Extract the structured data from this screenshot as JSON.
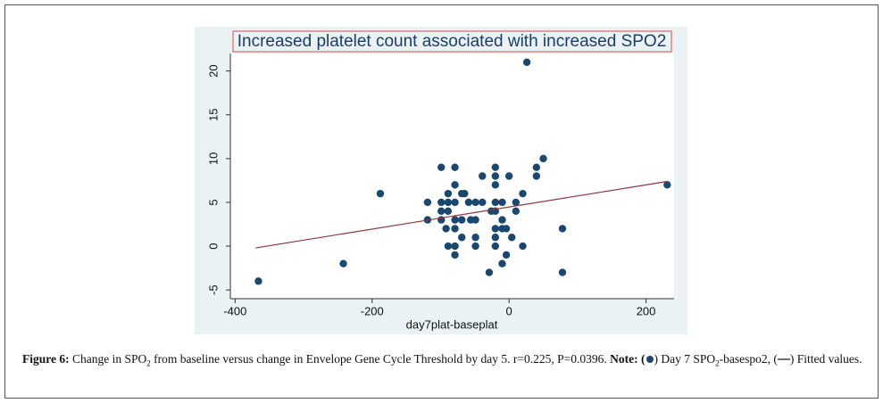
{
  "chart_data": {
    "type": "scatter",
    "title": "Increased platelet count associated with increased SPO2",
    "x_label": "day7plat-baseplat",
    "xlim": [
      -407,
      241
    ],
    "xticks": [
      -400,
      -200,
      0,
      200
    ],
    "ylim": [
      -6,
      22
    ],
    "yticks": [
      -5,
      0,
      5,
      10,
      15,
      20
    ],
    "series": [
      {
        "color": "#1a476f",
        "x": [
          -366,
          -242,
          -188,
          -119,
          -119,
          -99,
          -99,
          -99,
          -99,
          -92,
          -89,
          -89,
          -89,
          -89,
          -79,
          -79,
          -79,
          -79,
          -79,
          -79,
          -79,
          -69,
          -69,
          -65,
          -69,
          -59,
          -56,
          -49,
          -49,
          -49,
          -49,
          -39,
          -39,
          -29,
          -26,
          -20,
          -20,
          -20,
          -20,
          -20,
          -20,
          -20,
          -20,
          -10,
          -10,
          -10,
          -10,
          -4,
          -4,
          0,
          4,
          10,
          10,
          20,
          20,
          26,
          40,
          40,
          50,
          78,
          78,
          231
        ],
        "values": [
          -4,
          -2,
          6,
          5,
          3,
          9,
          5,
          4,
          3,
          2,
          6,
          5,
          4,
          0,
          9,
          7,
          5,
          3,
          2,
          0,
          -1,
          6,
          3,
          6,
          1,
          5,
          3,
          5,
          3,
          1,
          0,
          8,
          5,
          -3,
          4,
          9,
          8,
          7,
          5,
          4,
          2,
          1,
          0,
          5,
          3,
          2,
          -2,
          2,
          -1,
          8,
          1,
          5,
          4,
          6,
          0,
          21,
          9,
          8,
          10,
          2,
          -3,
          7
        ]
      },
      {
        "type": "line",
        "color": "#90353b",
        "x": [
          -370,
          232
        ],
        "values": [
          -0.2,
          7.4
        ]
      }
    ]
  },
  "caption": {
    "segments": [
      "Figure 6:",
      " Change in SPO",
      "2",
      " from baseline versus change in Envelope Gene Cycle Threshold by day 5. r=0.225, P=0.0396. ",
      "Note:",
      " (",
      ") Day 7 SPO",
      "2",
      "-basespo2, (",
      ") Fitted values."
    ]
  }
}
